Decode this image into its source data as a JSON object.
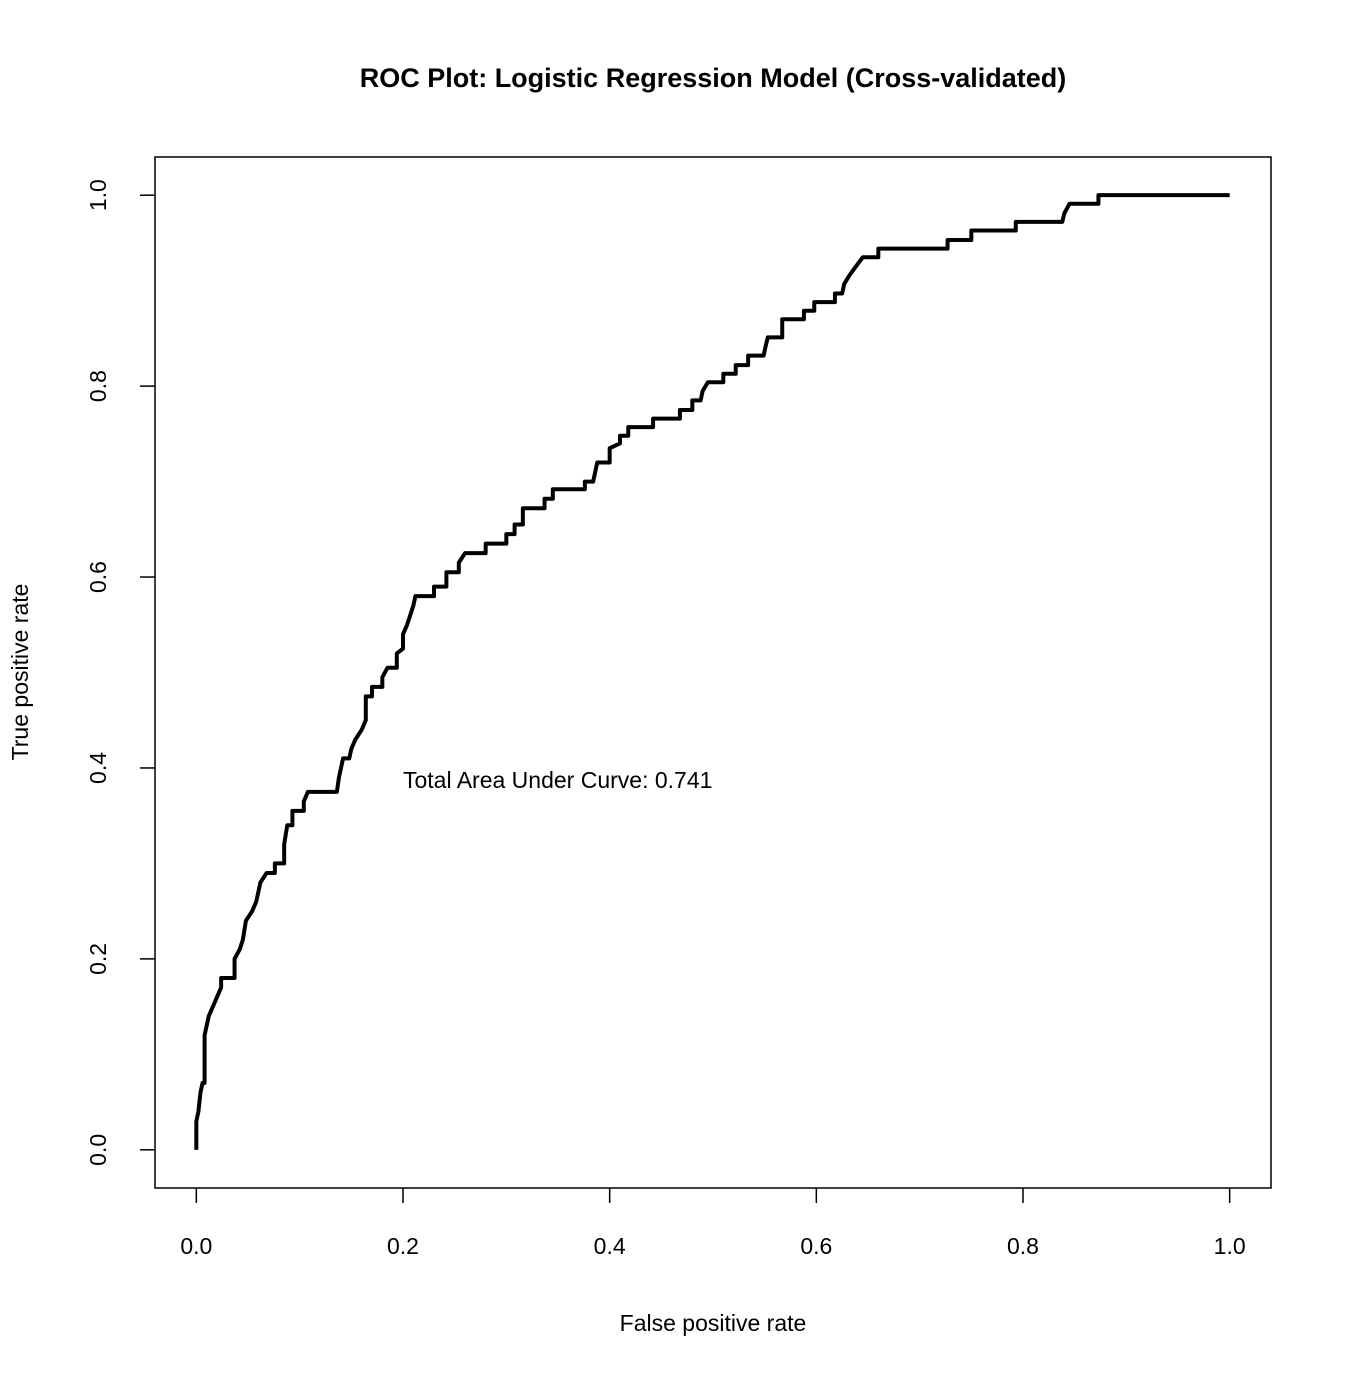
{
  "chart_data": {
    "type": "line",
    "title": "ROC Plot: Logistic Regression Model (Cross-validated)",
    "x_label": "False positive rate",
    "y_label": "True positive rate",
    "annotation": "Total Area Under Curve: 0.741",
    "color": "#000000",
    "xlim": [
      -0.04,
      1.04
    ],
    "ylim": [
      -0.04,
      1.04
    ],
    "xticks": [
      {
        "value": 0,
        "label": "0.0"
      },
      0.2,
      0.4,
      0.6,
      0.8,
      {
        "value": 1,
        "label": "1.0"
      }
    ],
    "yticks": [
      {
        "value": 0,
        "label": "0.0"
      },
      0.2,
      0.4,
      0.6,
      0.8,
      {
        "value": 1,
        "label": "1.0"
      }
    ],
    "grid": false,
    "x": [
      0,
      0,
      0.002,
      0.004,
      0.006,
      0.008,
      0.008,
      0.01,
      0.012,
      0.016,
      0.02,
      0.024,
      0.024,
      0.037,
      0.037,
      0.042,
      0.045,
      0.048,
      0.054,
      0.058,
      0.062,
      0.068,
      0.076,
      0.076,
      0.085,
      0.085,
      0.088,
      0.093,
      0.093,
      0.104,
      0.104,
      0.108,
      0.136,
      0.138,
      0.142,
      0.148,
      0.15,
      0.154,
      0.16,
      0.164,
      0.164,
      0.17,
      0.17,
      0.18,
      0.18,
      0.185,
      0.194,
      0.194,
      0.2,
      0.2,
      0.204,
      0.207,
      0.21,
      0.212,
      0.23,
      0.23,
      0.242,
      0.242,
      0.254,
      0.254,
      0.26,
      0.28,
      0.28,
      0.3,
      0.3,
      0.308,
      0.308,
      0.316,
      0.316,
      0.337,
      0.337,
      0.345,
      0.345,
      0.376,
      0.376,
      0.384,
      0.386,
      0.388,
      0.4,
      0.4,
      0.41,
      0.41,
      0.418,
      0.418,
      0.442,
      0.442,
      0.468,
      0.468,
      0.48,
      0.48,
      0.488,
      0.49,
      0.495,
      0.51,
      0.51,
      0.522,
      0.522,
      0.534,
      0.534,
      0.549,
      0.551,
      0.553,
      0.567,
      0.567,
      0.588,
      0.588,
      0.598,
      0.598,
      0.618,
      0.618,
      0.625,
      0.627,
      0.632,
      0.638,
      0.645,
      0.66,
      0.66,
      0.727,
      0.727,
      0.75,
      0.75,
      0.793,
      0.793,
      0.838,
      0.84,
      0.845,
      0.873,
      0.873,
      1
    ],
    "values": [
      0,
      0.03,
      0.04,
      0.06,
      0.07,
      0.07,
      0.12,
      0.13,
      0.14,
      0.15,
      0.16,
      0.17,
      0.18,
      0.18,
      0.2,
      0.21,
      0.22,
      0.24,
      0.25,
      0.26,
      0.28,
      0.29,
      0.29,
      0.3,
      0.3,
      0.32,
      0.34,
      0.34,
      0.355,
      0.355,
      0.365,
      0.375,
      0.375,
      0.39,
      0.41,
      0.41,
      0.42,
      0.43,
      0.44,
      0.45,
      0.475,
      0.475,
      0.485,
      0.485,
      0.495,
      0.505,
      0.505,
      0.52,
      0.525,
      0.54,
      0.55,
      0.56,
      0.57,
      0.58,
      0.58,
      0.59,
      0.59,
      0.605,
      0.605,
      0.615,
      0.625,
      0.625,
      0.635,
      0.635,
      0.645,
      0.645,
      0.655,
      0.655,
      0.672,
      0.672,
      0.682,
      0.682,
      0.692,
      0.692,
      0.7,
      0.7,
      0.71,
      0.72,
      0.72,
      0.735,
      0.74,
      0.748,
      0.748,
      0.757,
      0.757,
      0.766,
      0.766,
      0.775,
      0.775,
      0.785,
      0.785,
      0.795,
      0.804,
      0.804,
      0.813,
      0.813,
      0.822,
      0.822,
      0.832,
      0.832,
      0.842,
      0.851,
      0.851,
      0.87,
      0.87,
      0.879,
      0.879,
      0.888,
      0.888,
      0.897,
      0.897,
      0.907,
      0.916,
      0.925,
      0.935,
      0.935,
      0.944,
      0.944,
      0.953,
      0.953,
      0.963,
      0.963,
      0.972,
      0.972,
      0.981,
      0.991,
      0.991,
      1,
      1
    ]
  }
}
